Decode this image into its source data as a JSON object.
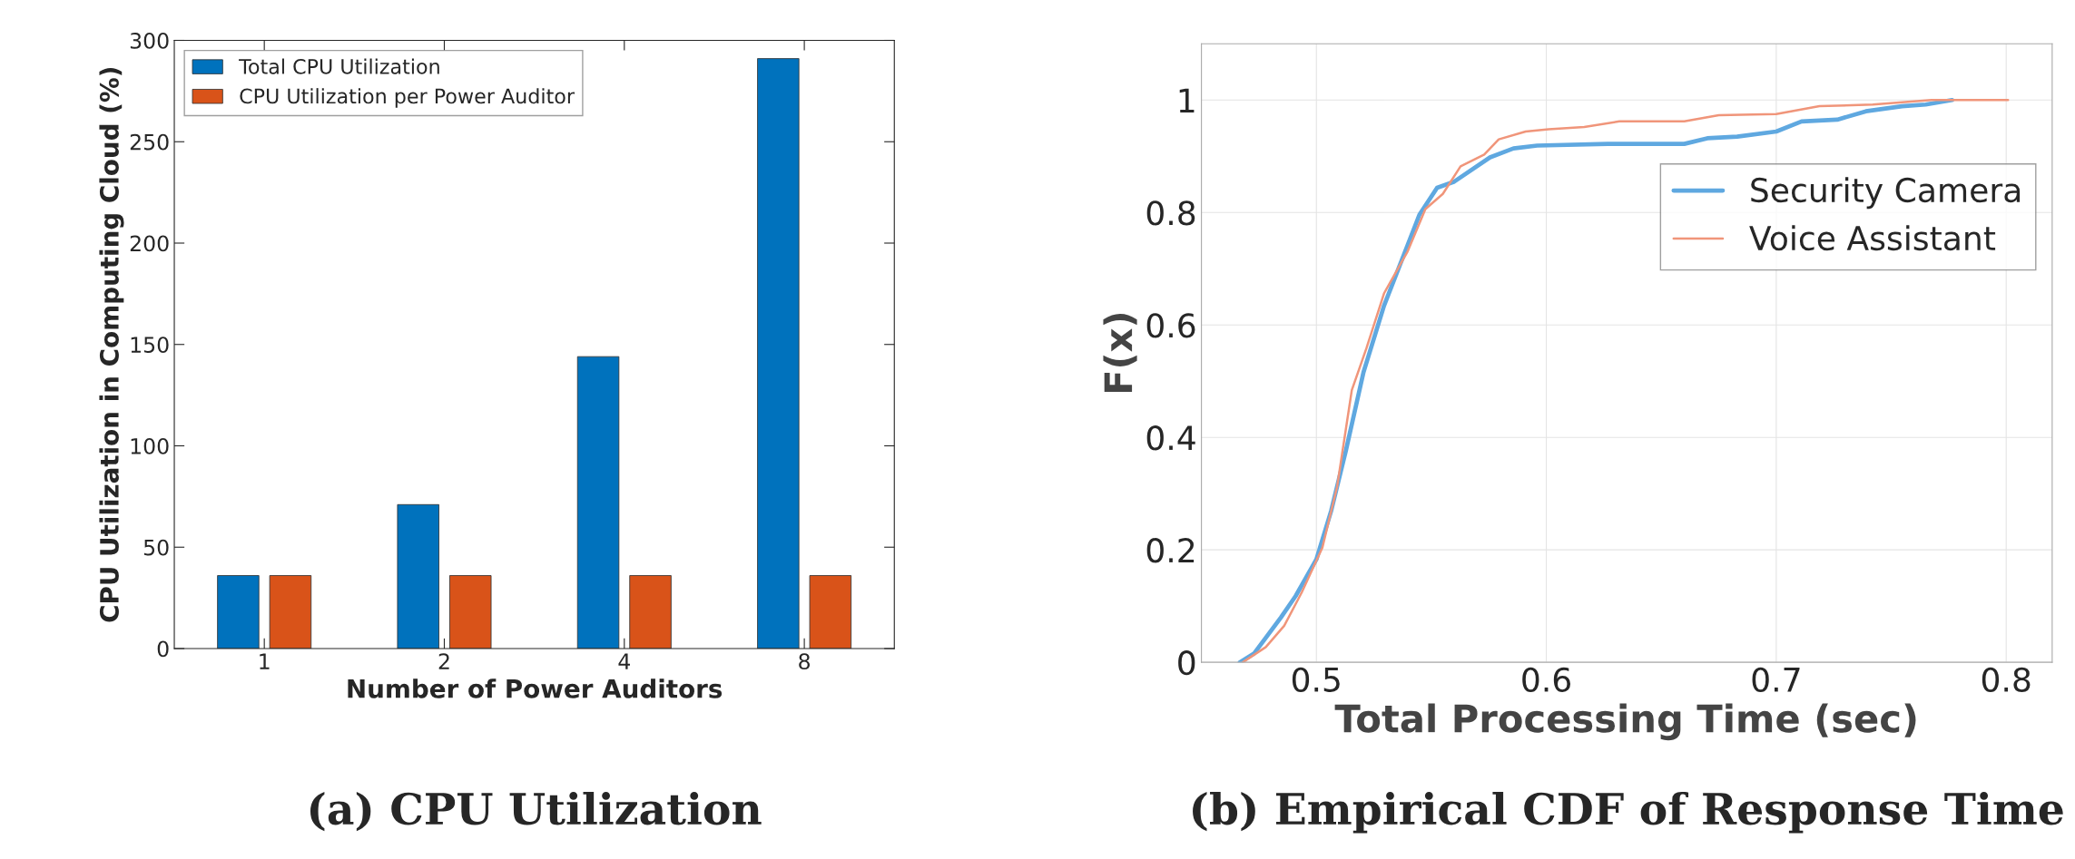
{
  "chart_data": [
    {
      "type": "bar",
      "title": "(a) CPU Utilization",
      "xlabel": "Number of Power Auditors",
      "ylabel": "CPU Utilization in Computing Cloud (%)",
      "categories": [
        "1",
        "2",
        "4",
        "8"
      ],
      "series": [
        {
          "name": "Total CPU Utilization",
          "color": "#0072bd",
          "values": [
            36,
            71,
            144,
            291
          ]
        },
        {
          "name": "CPU Utilization per Power Auditor",
          "color": "#d95319",
          "values": [
            36,
            36,
            36,
            36
          ]
        }
      ],
      "ylim": [
        0,
        300
      ],
      "yticks": [
        0,
        50,
        100,
        150,
        200,
        250,
        300
      ],
      "grid": false,
      "legend": "top left"
    },
    {
      "type": "line",
      "title": "(b) Empirical CDF of Response Time",
      "xlabel": "Total Processing Time (sec)",
      "ylabel": "F(x)",
      "series": [
        {
          "name": "Security Camera",
          "color": "#5fa8e0",
          "x": [
            0.4667,
            0.473,
            0.4846,
            0.491,
            0.5,
            0.5064,
            0.5128,
            0.5205,
            0.5294,
            0.5397,
            0.5448,
            0.5525,
            0.56,
            0.5755,
            0.5857,
            0.596,
            0.6267,
            0.66,
            0.67,
            0.683,
            0.7,
            0.711,
            0.7265,
            0.739,
            0.7547,
            0.765,
            0.7765
          ],
          "values": [
            0,
            0.016,
            0.08,
            0.118,
            0.183,
            0.269,
            0.376,
            0.516,
            0.634,
            0.742,
            0.796,
            0.844,
            0.855,
            0.898,
            0.914,
            0.919,
            0.922,
            0.922,
            0.932,
            0.935,
            0.944,
            0.962,
            0.965,
            0.98,
            0.989,
            0.992,
            1.0
          ]
        },
        {
          "name": "Voice Assistant",
          "color": "#f0957a",
          "x": [
            0.468,
            0.478,
            0.486,
            0.4936,
            0.5026,
            0.509,
            0.5154,
            0.5218,
            0.5294,
            0.5397,
            0.5474,
            0.555,
            0.5627,
            0.573,
            0.5793,
            0.591,
            0.601,
            0.6165,
            0.6318,
            0.66,
            0.675,
            0.7,
            0.7188,
            0.742,
            0.7675,
            0.8008
          ],
          "values": [
            0,
            0.027,
            0.065,
            0.124,
            0.204,
            0.312,
            0.484,
            0.559,
            0.656,
            0.731,
            0.806,
            0.833,
            0.882,
            0.903,
            0.93,
            0.944,
            0.948,
            0.952,
            0.962,
            0.962,
            0.973,
            0.975,
            0.989,
            0.992,
            1.0,
            1.0
          ]
        }
      ],
      "xlim": [
        0.45,
        0.82
      ],
      "xticks": [
        0.5,
        0.6,
        0.7,
        0.8
      ],
      "ylim": [
        0,
        1.1
      ],
      "yticks": [
        0,
        0.2,
        0.4,
        0.6,
        0.8,
        1
      ],
      "grid": true,
      "legend": "right"
    }
  ]
}
